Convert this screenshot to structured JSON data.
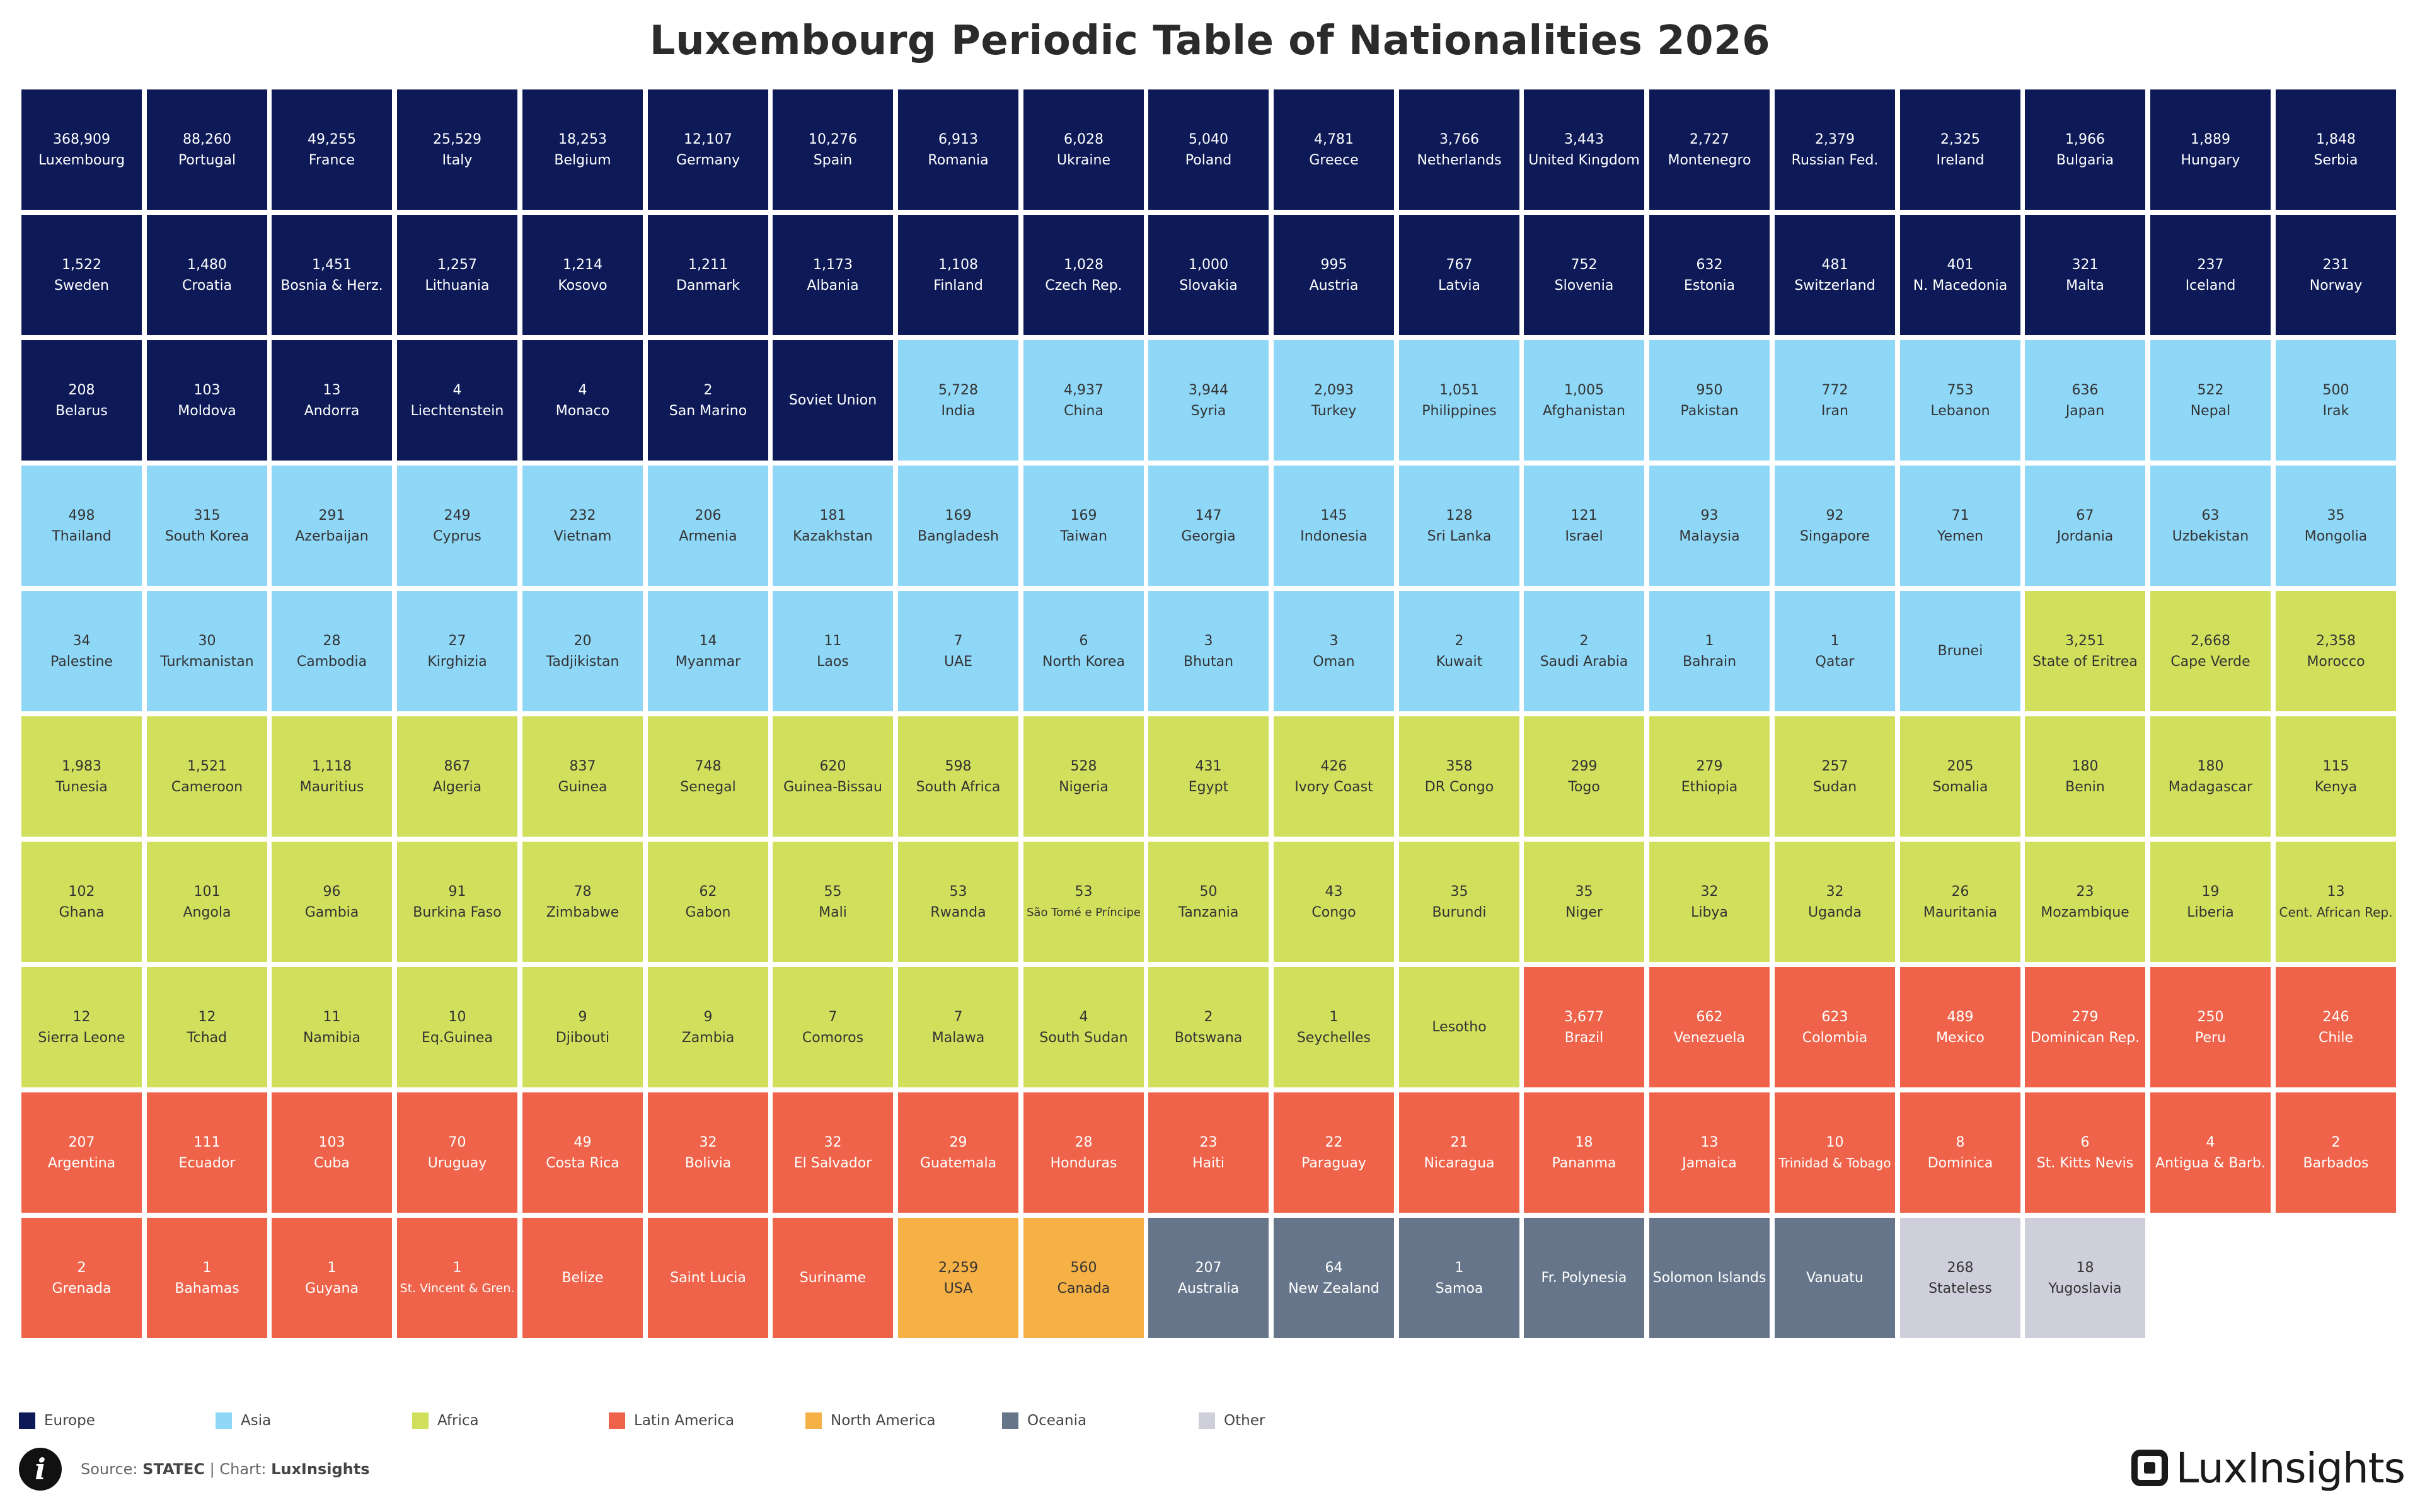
{
  "chart_data": {
    "type": "table",
    "title": "Luxembourg Periodic Table of Nationalities 2026",
    "colors": {
      "Europe": "#0d1a57",
      "Asia": "#8fd7f7",
      "Africa": "#d1e05c",
      "Latin America": "#ef634a",
      "North America": "#f5b046",
      "Oceania": "#66758a",
      "Other": "#cfcfdc"
    },
    "light_categories": [
      "Asia",
      "Africa",
      "North America",
      "Other"
    ],
    "legend": [
      "Europe",
      "Asia",
      "Africa",
      "Latin America",
      "North America",
      "Oceania",
      "Other"
    ],
    "cells": [
      {
        "v": "368,909",
        "n": "Luxembourg",
        "c": "Europe"
      },
      {
        "v": "88,260",
        "n": "Portugal",
        "c": "Europe"
      },
      {
        "v": "49,255",
        "n": "France",
        "c": "Europe"
      },
      {
        "v": "25,529",
        "n": "Italy",
        "c": "Europe"
      },
      {
        "v": "18,253",
        "n": "Belgium",
        "c": "Europe"
      },
      {
        "v": "12,107",
        "n": "Germany",
        "c": "Europe"
      },
      {
        "v": "10,276",
        "n": "Spain",
        "c": "Europe"
      },
      {
        "v": "6,913",
        "n": "Romania",
        "c": "Europe"
      },
      {
        "v": "6,028",
        "n": "Ukraine",
        "c": "Europe"
      },
      {
        "v": "5,040",
        "n": "Poland",
        "c": "Europe"
      },
      {
        "v": "4,781",
        "n": "Greece",
        "c": "Europe"
      },
      {
        "v": "3,766",
        "n": "Netherlands",
        "c": "Europe"
      },
      {
        "v": "3,443",
        "n": "United Kingdom",
        "c": "Europe"
      },
      {
        "v": "2,727",
        "n": "Montenegro",
        "c": "Europe"
      },
      {
        "v": "2,379",
        "n": "Russian Fed.",
        "c": "Europe"
      },
      {
        "v": "2,325",
        "n": "Ireland",
        "c": "Europe"
      },
      {
        "v": "1,966",
        "n": "Bulgaria",
        "c": "Europe"
      },
      {
        "v": "1,889",
        "n": "Hungary",
        "c": "Europe"
      },
      {
        "v": "1,848",
        "n": "Serbia",
        "c": "Europe"
      },
      {
        "v": "1,522",
        "n": "Sweden",
        "c": "Europe"
      },
      {
        "v": "1,480",
        "n": "Croatia",
        "c": "Europe"
      },
      {
        "v": "1,451",
        "n": "Bosnia & Herz.",
        "c": "Europe"
      },
      {
        "v": "1,257",
        "n": "Lithuania",
        "c": "Europe"
      },
      {
        "v": "1,214",
        "n": "Kosovo",
        "c": "Europe"
      },
      {
        "v": "1,211",
        "n": "Danmark",
        "c": "Europe"
      },
      {
        "v": "1,173",
        "n": "Albania",
        "c": "Europe"
      },
      {
        "v": "1,108",
        "n": "Finland",
        "c": "Europe"
      },
      {
        "v": "1,028",
        "n": "Czech Rep.",
        "c": "Europe"
      },
      {
        "v": "1,000",
        "n": "Slovakia",
        "c": "Europe"
      },
      {
        "v": "995",
        "n": "Austria",
        "c": "Europe"
      },
      {
        "v": "767",
        "n": "Latvia",
        "c": "Europe"
      },
      {
        "v": "752",
        "n": "Slovenia",
        "c": "Europe"
      },
      {
        "v": "632",
        "n": "Estonia",
        "c": "Europe"
      },
      {
        "v": "481",
        "n": "Switzerland",
        "c": "Europe"
      },
      {
        "v": "401",
        "n": "N. Macedonia",
        "c": "Europe"
      },
      {
        "v": "321",
        "n": "Malta",
        "c": "Europe"
      },
      {
        "v": "237",
        "n": "Iceland",
        "c": "Europe"
      },
      {
        "v": "231",
        "n": "Norway",
        "c": "Europe"
      },
      {
        "v": "208",
        "n": "Belarus",
        "c": "Europe"
      },
      {
        "v": "103",
        "n": "Moldova",
        "c": "Europe"
      },
      {
        "v": "13",
        "n": "Andorra",
        "c": "Europe"
      },
      {
        "v": "4",
        "n": "Liechtenstein",
        "c": "Europe"
      },
      {
        "v": "4",
        "n": "Monaco",
        "c": "Europe"
      },
      {
        "v": "2",
        "n": "San Marino",
        "c": "Europe"
      },
      {
        "v": "",
        "n": "Soviet Union",
        "c": "Europe"
      },
      {
        "v": "5,728",
        "n": "India",
        "c": "Asia"
      },
      {
        "v": "4,937",
        "n": "China",
        "c": "Asia"
      },
      {
        "v": "3,944",
        "n": "Syria",
        "c": "Asia"
      },
      {
        "v": "2,093",
        "n": "Turkey",
        "c": "Asia"
      },
      {
        "v": "1,051",
        "n": "Philippines",
        "c": "Asia"
      },
      {
        "v": "1,005",
        "n": "Afghanistan",
        "c": "Asia"
      },
      {
        "v": "950",
        "n": "Pakistan",
        "c": "Asia"
      },
      {
        "v": "772",
        "n": "Iran",
        "c": "Asia"
      },
      {
        "v": "753",
        "n": "Lebanon",
        "c": "Asia"
      },
      {
        "v": "636",
        "n": "Japan",
        "c": "Asia"
      },
      {
        "v": "522",
        "n": "Nepal",
        "c": "Asia"
      },
      {
        "v": "500",
        "n": "Irak",
        "c": "Asia"
      },
      {
        "v": "498",
        "n": "Thailand",
        "c": "Asia"
      },
      {
        "v": "315",
        "n": "South Korea",
        "c": "Asia"
      },
      {
        "v": "291",
        "n": "Azerbaijan",
        "c": "Asia"
      },
      {
        "v": "249",
        "n": "Cyprus",
        "c": "Asia"
      },
      {
        "v": "232",
        "n": "Vietnam",
        "c": "Asia"
      },
      {
        "v": "206",
        "n": "Armenia",
        "c": "Asia"
      },
      {
        "v": "181",
        "n": "Kazakhstan",
        "c": "Asia"
      },
      {
        "v": "169",
        "n": "Bangladesh",
        "c": "Asia"
      },
      {
        "v": "169",
        "n": "Taiwan",
        "c": "Asia"
      },
      {
        "v": "147",
        "n": "Georgia",
        "c": "Asia"
      },
      {
        "v": "145",
        "n": "Indonesia",
        "c": "Asia"
      },
      {
        "v": "128",
        "n": "Sri Lanka",
        "c": "Asia"
      },
      {
        "v": "121",
        "n": "Israel",
        "c": "Asia"
      },
      {
        "v": "93",
        "n": "Malaysia",
        "c": "Asia"
      },
      {
        "v": "92",
        "n": "Singapore",
        "c": "Asia"
      },
      {
        "v": "71",
        "n": "Yemen",
        "c": "Asia"
      },
      {
        "v": "67",
        "n": "Jordania",
        "c": "Asia"
      },
      {
        "v": "63",
        "n": "Uzbekistan",
        "c": "Asia"
      },
      {
        "v": "35",
        "n": "Mongolia",
        "c": "Asia"
      },
      {
        "v": "34",
        "n": "Palestine",
        "c": "Asia"
      },
      {
        "v": "30",
        "n": "Turkmanistan",
        "c": "Asia"
      },
      {
        "v": "28",
        "n": "Cambodia",
        "c": "Asia"
      },
      {
        "v": "27",
        "n": "Kirghizia",
        "c": "Asia"
      },
      {
        "v": "20",
        "n": "Tadjikistan",
        "c": "Asia"
      },
      {
        "v": "14",
        "n": "Myanmar",
        "c": "Asia"
      },
      {
        "v": "11",
        "n": "Laos",
        "c": "Asia"
      },
      {
        "v": "7",
        "n": "UAE",
        "c": "Asia"
      },
      {
        "v": "6",
        "n": "North Korea",
        "c": "Asia"
      },
      {
        "v": "3",
        "n": "Bhutan",
        "c": "Asia"
      },
      {
        "v": "3",
        "n": "Oman",
        "c": "Asia"
      },
      {
        "v": "2",
        "n": "Kuwait",
        "c": "Asia"
      },
      {
        "v": "2",
        "n": "Saudi Arabia",
        "c": "Asia"
      },
      {
        "v": "1",
        "n": "Bahrain",
        "c": "Asia"
      },
      {
        "v": "1",
        "n": "Qatar",
        "c": "Asia"
      },
      {
        "v": "",
        "n": "Brunei",
        "c": "Asia"
      },
      {
        "v": "3,251",
        "n": "State of Eritrea",
        "c": "Africa"
      },
      {
        "v": "2,668",
        "n": "Cape Verde",
        "c": "Africa"
      },
      {
        "v": "2,358",
        "n": "Morocco",
        "c": "Africa"
      },
      {
        "v": "1,983",
        "n": "Tunesia",
        "c": "Africa"
      },
      {
        "v": "1,521",
        "n": "Cameroon",
        "c": "Africa"
      },
      {
        "v": "1,118",
        "n": "Mauritius",
        "c": "Africa"
      },
      {
        "v": "867",
        "n": "Algeria",
        "c": "Africa"
      },
      {
        "v": "837",
        "n": "Guinea",
        "c": "Africa"
      },
      {
        "v": "748",
        "n": "Senegal",
        "c": "Africa"
      },
      {
        "v": "620",
        "n": "Guinea-Bissau",
        "c": "Africa"
      },
      {
        "v": "598",
        "n": "South Africa",
        "c": "Africa"
      },
      {
        "v": "528",
        "n": "Nigeria",
        "c": "Africa"
      },
      {
        "v": "431",
        "n": "Egypt",
        "c": "Africa"
      },
      {
        "v": "426",
        "n": "Ivory Coast",
        "c": "Africa"
      },
      {
        "v": "358",
        "n": "DR Congo",
        "c": "Africa"
      },
      {
        "v": "299",
        "n": "Togo",
        "c": "Africa"
      },
      {
        "v": "279",
        "n": "Ethiopia",
        "c": "Africa"
      },
      {
        "v": "257",
        "n": "Sudan",
        "c": "Africa"
      },
      {
        "v": "205",
        "n": "Somalia",
        "c": "Africa"
      },
      {
        "v": "180",
        "n": "Benin",
        "c": "Africa"
      },
      {
        "v": "180",
        "n": "Madagascar",
        "c": "Africa"
      },
      {
        "v": "115",
        "n": "Kenya",
        "c": "Africa"
      },
      {
        "v": "102",
        "n": "Ghana",
        "c": "Africa"
      },
      {
        "v": "101",
        "n": "Angola",
        "c": "Africa"
      },
      {
        "v": "96",
        "n": "Gambia",
        "c": "Africa"
      },
      {
        "v": "91",
        "n": "Burkina Faso",
        "c": "Africa"
      },
      {
        "v": "78",
        "n": "Zimbabwe",
        "c": "Africa"
      },
      {
        "v": "62",
        "n": "Gabon",
        "c": "Africa"
      },
      {
        "v": "55",
        "n": "Mali",
        "c": "Africa"
      },
      {
        "v": "53",
        "n": "Rwanda",
        "c": "Africa"
      },
      {
        "v": "53",
        "n": "São Tomé e Príncipe",
        "c": "Africa"
      },
      {
        "v": "50",
        "n": "Tanzania",
        "c": "Africa"
      },
      {
        "v": "43",
        "n": "Congo",
        "c": "Africa"
      },
      {
        "v": "35",
        "n": "Burundi",
        "c": "Africa"
      },
      {
        "v": "35",
        "n": "Niger",
        "c": "Africa"
      },
      {
        "v": "32",
        "n": "Libya",
        "c": "Africa"
      },
      {
        "v": "32",
        "n": "Uganda",
        "c": "Africa"
      },
      {
        "v": "26",
        "n": "Mauritania",
        "c": "Africa"
      },
      {
        "v": "23",
        "n": "Mozambique",
        "c": "Africa"
      },
      {
        "v": "19",
        "n": "Liberia",
        "c": "Africa"
      },
      {
        "v": "13",
        "n": "Cent. African Rep.",
        "c": "Africa"
      },
      {
        "v": "12",
        "n": "Sierra Leone",
        "c": "Africa"
      },
      {
        "v": "12",
        "n": "Tchad",
        "c": "Africa"
      },
      {
        "v": "11",
        "n": "Namibia",
        "c": "Africa"
      },
      {
        "v": "10",
        "n": "Eq.Guinea",
        "c": "Africa"
      },
      {
        "v": "9",
        "n": "Djibouti",
        "c": "Africa"
      },
      {
        "v": "9",
        "n": "Zambia",
        "c": "Africa"
      },
      {
        "v": "7",
        "n": "Comoros",
        "c": "Africa"
      },
      {
        "v": "7",
        "n": "Malawa",
        "c": "Africa"
      },
      {
        "v": "4",
        "n": "South Sudan",
        "c": "Africa"
      },
      {
        "v": "2",
        "n": "Botswana",
        "c": "Africa"
      },
      {
        "v": "1",
        "n": "Seychelles",
        "c": "Africa"
      },
      {
        "v": "",
        "n": "Lesotho",
        "c": "Africa"
      },
      {
        "v": "3,677",
        "n": "Brazil",
        "c": "Latin America"
      },
      {
        "v": "662",
        "n": "Venezuela",
        "c": "Latin America"
      },
      {
        "v": "623",
        "n": "Colombia",
        "c": "Latin America"
      },
      {
        "v": "489",
        "n": "Mexico",
        "c": "Latin America"
      },
      {
        "v": "279",
        "n": "Dominican Rep.",
        "c": "Latin America"
      },
      {
        "v": "250",
        "n": "Peru",
        "c": "Latin America"
      },
      {
        "v": "246",
        "n": "Chile",
        "c": "Latin America"
      },
      {
        "v": "207",
        "n": "Argentina",
        "c": "Latin America"
      },
      {
        "v": "111",
        "n": "Ecuador",
        "c": "Latin America"
      },
      {
        "v": "103",
        "n": "Cuba",
        "c": "Latin America"
      },
      {
        "v": "70",
        "n": "Uruguay",
        "c": "Latin America"
      },
      {
        "v": "49",
        "n": "Costa Rica",
        "c": "Latin America"
      },
      {
        "v": "32",
        "n": "Bolivia",
        "c": "Latin America"
      },
      {
        "v": "32",
        "n": "El Salvador",
        "c": "Latin America"
      },
      {
        "v": "29",
        "n": "Guatemala",
        "c": "Latin America"
      },
      {
        "v": "28",
        "n": "Honduras",
        "c": "Latin America"
      },
      {
        "v": "23",
        "n": "Haiti",
        "c": "Latin America"
      },
      {
        "v": "22",
        "n": "Paraguay",
        "c": "Latin America"
      },
      {
        "v": "21",
        "n": "Nicaragua",
        "c": "Latin America"
      },
      {
        "v": "18",
        "n": "Pananma",
        "c": "Latin America"
      },
      {
        "v": "13",
        "n": "Jamaica",
        "c": "Latin America"
      },
      {
        "v": "10",
        "n": "Trinidad & Tobago",
        "c": "Latin America"
      },
      {
        "v": "8",
        "n": "Dominica",
        "c": "Latin America"
      },
      {
        "v": "6",
        "n": "St. Kitts Nevis",
        "c": "Latin America"
      },
      {
        "v": "4",
        "n": "Antigua & Barb.",
        "c": "Latin America"
      },
      {
        "v": "2",
        "n": "Barbados",
        "c": "Latin America"
      },
      {
        "v": "2",
        "n": "Grenada",
        "c": "Latin America"
      },
      {
        "v": "1",
        "n": "Bahamas",
        "c": "Latin America"
      },
      {
        "v": "1",
        "n": "Guyana",
        "c": "Latin America"
      },
      {
        "v": "1",
        "n": "St. Vincent & Gren.",
        "c": "Latin America"
      },
      {
        "v": "",
        "n": "Belize",
        "c": "Latin America"
      },
      {
        "v": "",
        "n": "Saint Lucia",
        "c": "Latin America"
      },
      {
        "v": "",
        "n": "Suriname",
        "c": "Latin America"
      },
      {
        "v": "2,259",
        "n": "USA",
        "c": "North America"
      },
      {
        "v": "560",
        "n": "Canada",
        "c": "North America"
      },
      {
        "v": "207",
        "n": "Australia",
        "c": "Oceania"
      },
      {
        "v": "64",
        "n": "New Zealand",
        "c": "Oceania"
      },
      {
        "v": "1",
        "n": "Samoa",
        "c": "Oceania"
      },
      {
        "v": "",
        "n": "Fr. Polynesia",
        "c": "Oceania"
      },
      {
        "v": "",
        "n": "Solomon Islands",
        "c": "Oceania"
      },
      {
        "v": "",
        "n": "Vanuatu",
        "c": "Oceania"
      },
      {
        "v": "268",
        "n": "Stateless",
        "c": "Other"
      },
      {
        "v": "18",
        "n": "Yugoslavia",
        "c": "Other"
      }
    ]
  },
  "footer": {
    "source_label": "Source: ",
    "source_name": "STATEC",
    "separator": " | Chart: ",
    "chart_by": "LuxInsights"
  },
  "brand": {
    "text": "LuxInsights"
  }
}
